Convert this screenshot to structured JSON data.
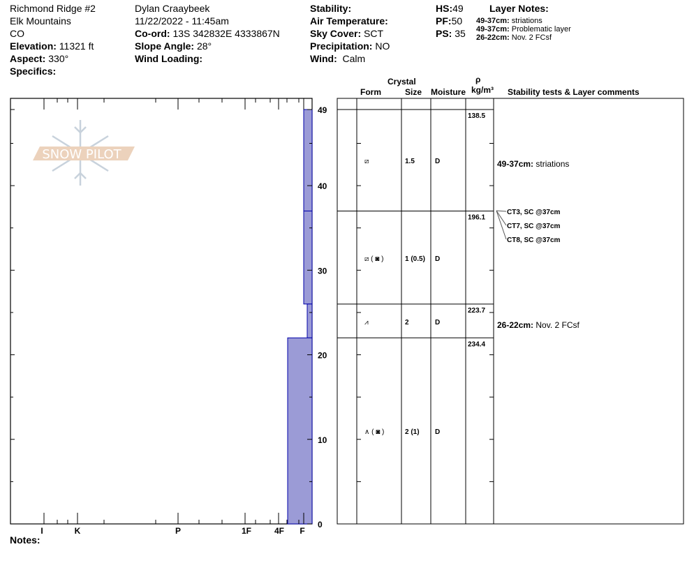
{
  "header": {
    "location": "Richmond Ridge #2",
    "range": "Elk Mountains",
    "state": "CO",
    "elevation_label": "Elevation:",
    "elevation": "11321 ft",
    "aspect_label": "Aspect:",
    "aspect": "330°",
    "specifics_label": "Specifics:",
    "observer": "Dylan Craaybeek",
    "datetime": "11/22/2022 - 11:45am",
    "coord_label": "Co-ord:",
    "coord": "13S 342832E 4333867N",
    "slope_label": "Slope Angle:",
    "slope": "28°",
    "wind_loading_label": "Wind Loading:",
    "stability_label": "Stability:",
    "air_temp_label": "Air Temperature:",
    "sky_label": "Sky Cover:",
    "sky": "SCT",
    "precip_label": "Precipitation:",
    "precip": "NO",
    "wind_label": "Wind:",
    "wind": "Calm",
    "hs_label": "HS:",
    "hs": "49",
    "pf_label": "PF:",
    "pf": "50",
    "ps_label": "PS:",
    "ps": "35",
    "layer_notes_title": "Layer Notes:",
    "layer_notes": [
      {
        "range": "49-37cm:",
        "text": "striations"
      },
      {
        "range": "49-37cm:",
        "text": "Problematic layer"
      },
      {
        "range": "26-22cm:",
        "text": "Nov. 2 FCsf"
      }
    ]
  },
  "logo": {
    "text": "SNOW PILOT"
  },
  "table_headers": {
    "crystal": "Crystal",
    "form": "Form",
    "size": "Size",
    "moisture": "Moisture",
    "rho": "ρ",
    "density_unit": "kg/m³",
    "comments": "Stability tests & Layer comments"
  },
  "notes_label": "Notes:",
  "chart_data": {
    "type": "bar",
    "ylim": [
      0,
      49
    ],
    "y_ticks": [
      "49",
      "40",
      "30",
      "20",
      "10",
      "0"
    ],
    "x_tick_labels": [
      "I",
      "K",
      "P",
      "1F",
      "4F",
      "F"
    ],
    "fill_color": "#9b9bd6",
    "edge_color": "#0000aa",
    "layers": [
      {
        "top": 49,
        "bottom": 37,
        "hardness": "F",
        "form": "⧄",
        "size": "1.5",
        "moisture": "D",
        "density": "138.5",
        "comment_range": "49-37cm:",
        "comment": "striations"
      },
      {
        "top": 37,
        "bottom": 26,
        "hardness": "F",
        "form": "⧄ ( ◙ )",
        "size": "1 (0.5)",
        "moisture": "D",
        "density": "196.1",
        "comment_range": "",
        "comment": ""
      },
      {
        "top": 26,
        "bottom": 22,
        "hardness": "F-",
        "form": "⩘",
        "size": "2",
        "moisture": "D",
        "density": "223.7",
        "comment_range": "26-22cm:",
        "comment": "Nov. 2 FCsf"
      },
      {
        "top": 22,
        "bottom": 0,
        "hardness": "4F-F",
        "form": "∧ ( ◙ )",
        "size": "2 (1)",
        "moisture": "D",
        "density": "234.4",
        "comment_range": "",
        "comment": ""
      }
    ],
    "stability_tests": [
      "CT3, SC @37cm",
      "CT7, SC @37cm",
      "CT8, SC @37cm"
    ]
  }
}
